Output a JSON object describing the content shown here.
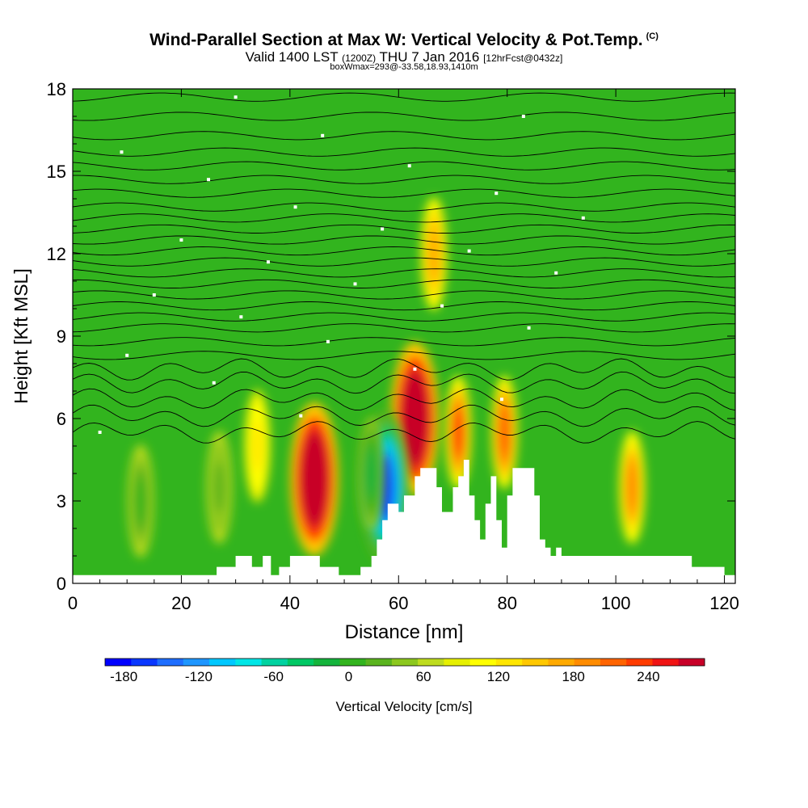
{
  "header": {
    "title": "Wind-Parallel Section at Max W: Vertical Velocity & Pot.Temp.",
    "title_mark": "(C)",
    "valid_a": "Valid 1400 LST",
    "valid_b": "(1200Z)",
    "valid_c": "THU 7 Jan 2016",
    "valid_d": "[12hrFcst@0432z]",
    "box_note": "boxWmax=293@-33.58,18.93,1410m"
  },
  "chart_data": {
    "type": "heatmap",
    "xlabel": "Distance [nm]",
    "ylabel": "Height [Kft MSL]",
    "xlim": [
      0,
      122
    ],
    "ylim": [
      0,
      18
    ],
    "xticks": [
      0,
      20,
      40,
      60,
      80,
      100,
      120
    ],
    "yticks": [
      0,
      3,
      6,
      9,
      12,
      15,
      18
    ],
    "colorbar": {
      "label": "Vertical Velocity [cm/s]",
      "min": -195,
      "max": 285,
      "step": 15,
      "tick_values": [
        -180,
        -120,
        -60,
        0,
        60,
        120,
        180,
        240
      ],
      "colors": [
        "#0000ff",
        "#0a37ff",
        "#1e6eff",
        "#1e96ff",
        "#00c8ff",
        "#00e6e6",
        "#00d2a0",
        "#00c864",
        "#14b43c",
        "#32b41e",
        "#5ab41e",
        "#8cc81e",
        "#bedc1e",
        "#e6f000",
        "#ffff00",
        "#ffe600",
        "#ffc800",
        "#ffaa00",
        "#ff8c00",
        "#ff6400",
        "#ff3c00",
        "#f01414",
        "#c80028"
      ]
    },
    "vertical_velocity_features": [
      {
        "x": 44.5,
        "height": 3.8,
        "peak": 230
      },
      {
        "x": 63.0,
        "height": 6.0,
        "peak": 210
      },
      {
        "x": 57.5,
        "height": 3.5,
        "peak": -170
      },
      {
        "x": 71.0,
        "height": 5.5,
        "peak": 110
      },
      {
        "x": 79.5,
        "height": 5.5,
        "peak": 100
      },
      {
        "x": 103.0,
        "height": 3.5,
        "peak": 85
      },
      {
        "x": 66.5,
        "height": 12.0,
        "peak": 60
      },
      {
        "x": 55.0,
        "height": 4.0,
        "peak": -70
      },
      {
        "x": 12.5,
        "height": 3.0,
        "peak": -50
      },
      {
        "x": 27.0,
        "height": 3.5,
        "peak": -40
      },
      {
        "x": 34.0,
        "height": 5.0,
        "peak": 30
      }
    ],
    "terrain": [
      [
        0,
        0.3
      ],
      [
        26.5,
        0.3
      ],
      [
        26.5,
        0.6
      ],
      [
        30,
        0.6
      ],
      [
        30,
        1.0
      ],
      [
        33,
        1.0
      ],
      [
        33,
        0.6
      ],
      [
        35,
        0.6
      ],
      [
        35,
        1.0
      ],
      [
        36.5,
        1.0
      ],
      [
        36.5,
        0.3
      ],
      [
        38,
        0.3
      ],
      [
        38,
        0.6
      ],
      [
        40,
        0.6
      ],
      [
        40,
        1.0
      ],
      [
        45.5,
        1.0
      ],
      [
        45.5,
        0.6
      ],
      [
        49,
        0.6
      ],
      [
        49,
        0.3
      ],
      [
        53,
        0.3
      ],
      [
        53,
        0.6
      ],
      [
        55,
        0.6
      ],
      [
        55,
        1.0
      ],
      [
        56,
        1.0
      ],
      [
        56,
        1.6
      ],
      [
        57,
        1.6
      ],
      [
        57,
        2.3
      ],
      [
        58,
        2.3
      ],
      [
        58,
        2.9
      ],
      [
        60,
        2.9
      ],
      [
        60,
        2.6
      ],
      [
        61,
        2.6
      ],
      [
        61,
        3.2
      ],
      [
        63,
        3.2
      ],
      [
        63,
        3.9
      ],
      [
        64,
        3.9
      ],
      [
        64,
        4.2
      ],
      [
        67,
        4.2
      ],
      [
        67,
        3.5
      ],
      [
        68,
        3.5
      ],
      [
        68,
        2.6
      ],
      [
        70,
        2.6
      ],
      [
        70,
        3.5
      ],
      [
        71,
        3.5
      ],
      [
        71,
        3.9
      ],
      [
        72,
        3.9
      ],
      [
        72,
        4.5
      ],
      [
        73,
        4.5
      ],
      [
        73,
        3.2
      ],
      [
        74,
        3.2
      ],
      [
        74,
        2.3
      ],
      [
        75,
        2.3
      ],
      [
        75,
        1.6
      ],
      [
        76,
        1.6
      ],
      [
        76,
        2.9
      ],
      [
        77,
        2.9
      ],
      [
        77,
        3.9
      ],
      [
        78,
        3.9
      ],
      [
        78,
        2.3
      ],
      [
        79,
        2.3
      ],
      [
        79,
        1.3
      ],
      [
        80,
        1.3
      ],
      [
        80,
        3.2
      ],
      [
        81,
        3.2
      ],
      [
        81,
        4.2
      ],
      [
        85,
        4.2
      ],
      [
        85,
        3.2
      ],
      [
        86,
        3.2
      ],
      [
        86,
        1.6
      ],
      [
        87,
        1.6
      ],
      [
        87,
        1.3
      ],
      [
        88,
        1.3
      ],
      [
        88,
        1.0
      ],
      [
        89,
        1.0
      ],
      [
        89,
        1.3
      ],
      [
        90,
        1.3
      ],
      [
        90,
        1.0
      ],
      [
        114,
        1.0
      ],
      [
        114,
        0.6
      ],
      [
        120,
        0.6
      ],
      [
        120,
        0.3
      ],
      [
        122,
        0.3
      ]
    ],
    "isotherm_base_heights": [
      5.5,
      6.1,
      6.7,
      7.3,
      7.8,
      8.3,
      8.8,
      9.3,
      9.7,
      10.1,
      10.5,
      10.9,
      11.3,
      11.7,
      12.1,
      12.5,
      12.9,
      13.3,
      13.7,
      14.2,
      14.7,
      15.2,
      15.7,
      16.3,
      17.0,
      17.7
    ]
  }
}
